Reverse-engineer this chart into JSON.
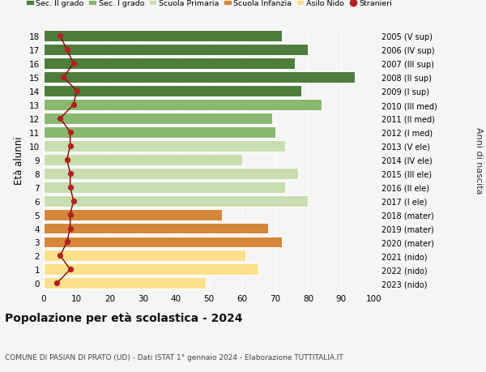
{
  "ages": [
    0,
    1,
    2,
    3,
    4,
    5,
    6,
    7,
    8,
    9,
    10,
    11,
    12,
    13,
    14,
    15,
    16,
    17,
    18
  ],
  "bar_values": [
    49,
    65,
    61,
    72,
    68,
    54,
    80,
    73,
    77,
    60,
    73,
    70,
    69,
    84,
    78,
    94,
    76,
    80,
    72
  ],
  "stranieri": [
    4,
    8,
    5,
    7,
    8,
    8,
    9,
    8,
    8,
    7,
    8,
    8,
    5,
    9,
    10,
    6,
    9,
    7,
    5
  ],
  "right_labels": [
    "2023 (nido)",
    "2022 (nido)",
    "2021 (nido)",
    "2020 (mater)",
    "2019 (mater)",
    "2018 (mater)",
    "2017 (I ele)",
    "2016 (II ele)",
    "2015 (III ele)",
    "2014 (IV ele)",
    "2013 (V ele)",
    "2012 (I med)",
    "2011 (II med)",
    "2010 (III med)",
    "2009 (I sup)",
    "2008 (II sup)",
    "2007 (III sup)",
    "2006 (IV sup)",
    "2005 (V sup)"
  ],
  "bar_colors": [
    "#fce08a",
    "#fce08a",
    "#fce08a",
    "#d4863a",
    "#d4863a",
    "#d4863a",
    "#c8ddb0",
    "#c8ddb0",
    "#c8ddb0",
    "#c8ddb0",
    "#c8ddb0",
    "#8ab870",
    "#8ab870",
    "#8ab870",
    "#4e7d3c",
    "#4e7d3c",
    "#4e7d3c",
    "#4e7d3c",
    "#4e7d3c"
  ],
  "legend_labels": [
    "Sec. II grado",
    "Sec. I grado",
    "Scuola Primaria",
    "Scuola Infanzia",
    "Asilo Nido",
    "Stranieri"
  ],
  "legend_colors": [
    "#4e7d3c",
    "#8ab870",
    "#c8ddb0",
    "#d4863a",
    "#fce08a",
    "#b22222"
  ],
  "ylabel": "Età alunni",
  "right_ylabel": "Anni di nascita",
  "title": "Popolazione per età scolastica - 2024",
  "subtitle": "COMUNE DI PASIAN DI PRATO (UD) - Dati ISTAT 1° gennaio 2024 - Elaborazione TUTTITALIA.IT",
  "xlim": [
    0,
    100
  ],
  "bg_color": "#f5f5f5",
  "stranieri_color": "#b22222",
  "stranieri_line_color": "#8b0000"
}
